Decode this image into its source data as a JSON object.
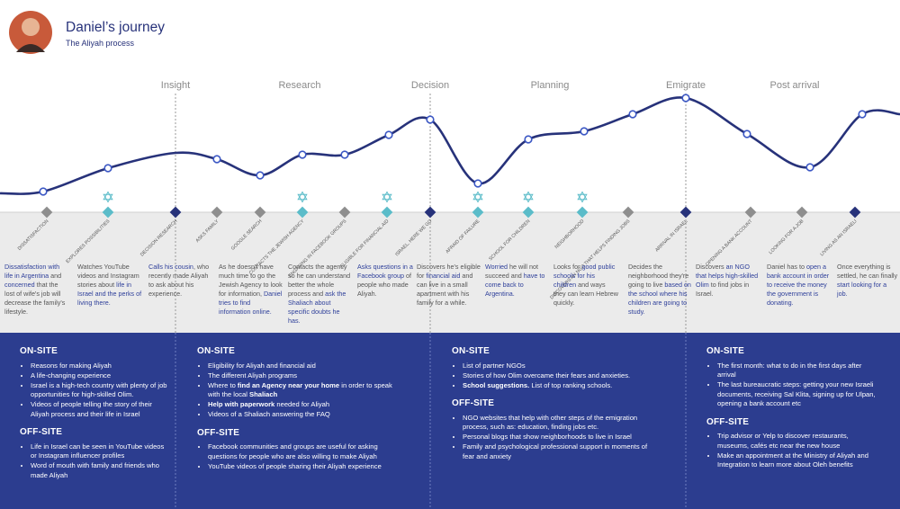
{
  "header": {
    "title": "Daniel’s journey",
    "subtitle": "The Aliyah process"
  },
  "phases": [
    "Insight",
    "Research",
    "Decision",
    "Planning",
    "Emigrate",
    "Post arrival"
  ],
  "steps": [
    {
      "label": "DISSATISFACTION",
      "color": "#8e8e8e",
      "icon": false
    },
    {
      "label": "EXPLORES POSSIBILITIES",
      "color": "#5bbcc9",
      "icon": true
    },
    {
      "label": "DECISION RESEARCH",
      "color": "#27327a",
      "icon": false
    },
    {
      "label": "ASKS FAMILY",
      "color": "#8e8e8e",
      "icon": false
    },
    {
      "label": "GOOGLE SEARCH",
      "color": "#8e8e8e",
      "icon": false
    },
    {
      "label": "CONTACTS THE JEWISH AGENCY",
      "color": "#5bbcc9",
      "icon": true
    },
    {
      "label": "ENGAGING IN FACEBOOK GROUPS",
      "color": "#8e8e8e",
      "icon": false
    },
    {
      "label": "ELIGIBLE FOR FINANCIAL AID",
      "color": "#5bbcc9",
      "icon": true
    },
    {
      "label": "ISRAEL, HERE WE GO",
      "color": "#27327a",
      "icon": false
    },
    {
      "label": "AFRAID OF FAILURE",
      "color": "#5bbcc9",
      "icon": true
    },
    {
      "label": "SCHOOL FOR CHILDREN",
      "color": "#5bbcc9",
      "icon": true
    },
    {
      "label": "NEIGHBORHOOD",
      "color": "#5bbcc9",
      "icon": true
    },
    {
      "label": "DISCOVERS AN NGO THAT HELPS FINDING JOBS",
      "color": "#8e8e8e",
      "icon": false
    },
    {
      "label": "ARRIVAL IN ISRAEL",
      "color": "#27327a",
      "icon": false
    },
    {
      "label": "OPENING A BANK ACCOUNT",
      "color": "#8e8e8e",
      "icon": false
    },
    {
      "label": "LOOKING FOR A JOB",
      "color": "#8e8e8e",
      "icon": false
    },
    {
      "label": "LIVING AS AN ISRAELI",
      "color": "#27327a",
      "icon": false
    }
  ],
  "descriptions": [
    [
      {
        "text": "Dissatisfaction with life in Argentina",
        "highlight": true
      },
      {
        "text": " and "
      },
      {
        "text": "concerned",
        "highlight": true
      },
      {
        "text": " that the lost of wife's job will decrease the family's lifestyle."
      }
    ],
    [
      {
        "text": "Watches YouTube videos and Instagram stories about "
      },
      {
        "text": "life in Israel and the perks of living there.",
        "highlight": true
      }
    ],
    [
      {
        "text": "Calls his cousin",
        "highlight": true
      },
      {
        "text": ", who recently made Aliyah to ask about his experience."
      }
    ],
    [
      {
        "text": "As he doesn't have much time to go the Jewish Agency to look for information, "
      },
      {
        "text": "Daniel tries to find information online.",
        "highlight": true
      }
    ],
    [
      {
        "text": "Contacts the agency so he can understand better the whole process and "
      },
      {
        "text": "ask the Shaliach about specific doubts he has.",
        "highlight": true
      }
    ],
    [
      {
        "text": "Asks questions in a Facebook group",
        "highlight": true
      },
      {
        "text": " of people who made Aliyah."
      }
    ],
    [
      {
        "text": "Discovers he's eligible for "
      },
      {
        "text": "financial aid",
        "highlight": true
      },
      {
        "text": " and can live in a small apartment with his family for a while."
      }
    ],
    [
      {
        "text": "Worried",
        "highlight": true
      },
      {
        "text": " he will not succeed and "
      },
      {
        "text": "have to come back to Argentina.",
        "highlight": true
      }
    ],
    [
      {
        "text": "Looks for "
      },
      {
        "text": "good public schools for his children",
        "highlight": true
      },
      {
        "text": " and  ways they can learn Hebrew quickly."
      }
    ],
    [
      {
        "text": "Decides the neighborhood they're going to live "
      },
      {
        "text": "based on the school where his children are going to study.",
        "highlight": true
      }
    ],
    [
      {
        "text": "Discovers "
      },
      {
        "text": "an NGO that helps high-skilled Olim",
        "highlight": true
      },
      {
        "text": " to find jobs in Israel."
      }
    ],
    [
      {
        "text": "Daniel has to "
      },
      {
        "text": "open a bank account in order to receive the money the government is donating.",
        "highlight": true
      }
    ],
    [
      {
        "text": "Once everything is settled, he can finally "
      },
      {
        "text": "start looking for a job.",
        "highlight": true
      }
    ]
  ],
  "touchpoints": [
    {
      "on_heading": "ON-SITE",
      "on_items": [
        [
          {
            "text": "Reasons for making Aliyah"
          }
        ],
        [
          {
            "text": "A life-changing experience"
          }
        ],
        [
          {
            "text": "Israel is a high-tech country with plenty of job opportunities for high-skilled Olim."
          }
        ],
        [
          {
            "text": "Videos of people telling the story of their Aliyah process and their life in Israel"
          }
        ]
      ],
      "off_heading": "OFF-SITE",
      "off_items": [
        [
          {
            "text": "Life in Israel can be seen in YouTube videos or Instagram influencer profiles"
          }
        ],
        [
          {
            "text": "Word of mouth with family and friends who made Aliyah"
          }
        ]
      ]
    },
    {
      "on_heading": "ON-SITE",
      "on_items": [
        [
          {
            "text": "Eligibility for Aliyah and financial aid"
          }
        ],
        [
          {
            "text": "The different Aliyah programs"
          }
        ],
        [
          {
            "text": "Where to "
          },
          {
            "text": "find an Agency near your home",
            "highlight": true
          },
          {
            "text": " in order to speak with the local "
          },
          {
            "text": "Shaliach",
            "highlight": true
          }
        ],
        [
          {
            "text": "Help with paperwork",
            "highlight": true
          },
          {
            "text": " needed for Aliyah"
          }
        ],
        [
          {
            "text": "Videos of a Shaliach answering the FAQ"
          }
        ]
      ],
      "off_heading": "OFF-SITE",
      "off_items": [
        [
          {
            "text": "Facebook communities and groups are useful for asking questions for people who are also willing to make Aliyah"
          }
        ],
        [
          {
            "text": "YouTube videos of people sharing their Aliyah experience"
          }
        ]
      ]
    },
    {
      "on_heading": "ON-SITE",
      "on_items": [
        [
          {
            "text": "List of partner NGOs"
          }
        ],
        [
          {
            "text": "Stories of how Olim overcame their fears and anxieties."
          }
        ],
        [
          {
            "text": "School suggestions.",
            "highlight": true
          },
          {
            "text": "  List of top ranking schools."
          }
        ]
      ],
      "off_heading": "OFF-SITE",
      "off_items": [
        [
          {
            "text": "NGO websites that help with other steps of the emigration process, such as: education, finding jobs etc."
          }
        ],
        [
          {
            "text": "Personal blogs that show neighborhoods to live in Israel"
          }
        ],
        [
          {
            "text": "Family and psychological professional support in moments of fear and anxiety"
          }
        ]
      ]
    },
    {
      "on_heading": "ON-SITE",
      "on_items": [
        [
          {
            "text": "The first month: what to do in the first days after arrival"
          }
        ],
        [
          {
            "text": "The last bureaucratic steps: getting your new Israeli documents, receiving Sal Klita, signing up for Ulpan, opening a bank account etc"
          }
        ]
      ],
      "off_heading": "OFF-SITE",
      "off_items": [
        [
          {
            "text": "Trip advisor or Yelp to discover restaurants, museums, cafés etc near the new house"
          }
        ],
        [
          {
            "text": "Make an appointment at the Ministry of Aliyah and Integration to learn more about Oleh benefits"
          }
        ]
      ]
    }
  ]
}
